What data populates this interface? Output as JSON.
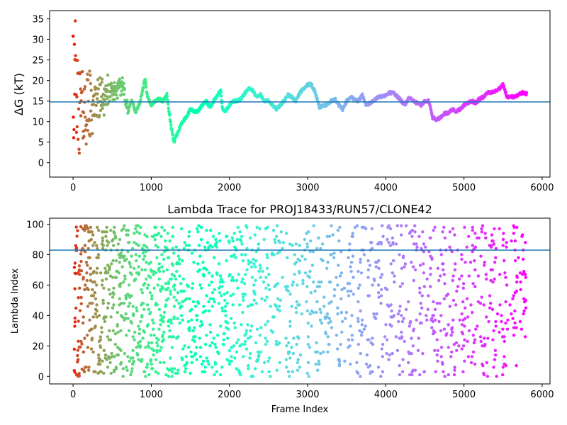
{
  "chart_data": [
    {
      "type": "scatter",
      "title": "",
      "xlabel": "",
      "ylabel": "ΔG (kT)",
      "xlim": [
        -300,
        6100
      ],
      "ylim": [
        -3.5,
        37
      ],
      "xticks": [
        0,
        1000,
        2000,
        3000,
        4000,
        5000,
        6000
      ],
      "yticks": [
        0,
        5,
        10,
        15,
        20,
        25,
        30,
        35
      ],
      "hline": {
        "y": 14.8,
        "color": "#1f77b4"
      },
      "colormap": "rainbow (red at early frames → violet at late frames)",
      "grid": false,
      "legend": "none",
      "trend": [
        [
          0,
          18
        ],
        [
          60,
          14
        ],
        [
          150,
          13
        ],
        [
          250,
          14
        ],
        [
          350,
          16
        ],
        [
          450,
          17
        ],
        [
          550,
          17.5
        ],
        [
          650,
          19
        ],
        [
          700,
          12
        ],
        [
          750,
          15.5
        ],
        [
          800,
          12
        ],
        [
          860,
          15
        ],
        [
          920,
          20.5
        ],
        [
          950,
          16
        ],
        [
          1000,
          14
        ],
        [
          1050,
          15
        ],
        [
          1100,
          15.5
        ],
        [
          1150,
          15
        ],
        [
          1200,
          16.5
        ],
        [
          1230,
          12
        ],
        [
          1260,
          8
        ],
        [
          1290,
          5
        ],
        [
          1310,
          6
        ],
        [
          1350,
          8
        ],
        [
          1400,
          10
        ],
        [
          1450,
          11
        ],
        [
          1500,
          13
        ],
        [
          1550,
          12.5
        ],
        [
          1600,
          12.5
        ],
        [
          1650,
          14
        ],
        [
          1700,
          15
        ],
        [
          1750,
          13.5
        ],
        [
          1800,
          15
        ],
        [
          1850,
          16.5
        ],
        [
          1890,
          17.5
        ],
        [
          1910,
          13
        ],
        [
          1950,
          12.5
        ],
        [
          2000,
          14
        ],
        [
          2050,
          15
        ],
        [
          2100,
          15
        ],
        [
          2150,
          15.5
        ],
        [
          2200,
          17
        ],
        [
          2250,
          18
        ],
        [
          2300,
          17.5
        ],
        [
          2350,
          16
        ],
        [
          2400,
          16.5
        ],
        [
          2450,
          15
        ],
        [
          2500,
          15
        ],
        [
          2550,
          14
        ],
        [
          2600,
          13
        ],
        [
          2650,
          14
        ],
        [
          2700,
          15
        ],
        [
          2750,
          16.5
        ],
        [
          2800,
          16
        ],
        [
          2850,
          15
        ],
        [
          2900,
          17
        ],
        [
          2950,
          18
        ],
        [
          3000,
          19
        ],
        [
          3050,
          19
        ],
        [
          3100,
          17
        ],
        [
          3150,
          13.5
        ],
        [
          3200,
          14
        ],
        [
          3250,
          14
        ],
        [
          3300,
          15
        ],
        [
          3350,
          15.5
        ],
        [
          3400,
          14
        ],
        [
          3450,
          13
        ],
        [
          3500,
          15
        ],
        [
          3550,
          16
        ],
        [
          3600,
          15.5
        ],
        [
          3650,
          15
        ],
        [
          3700,
          16.5
        ],
        [
          3750,
          14
        ],
        [
          3800,
          14.5
        ],
        [
          3850,
          15
        ],
        [
          3900,
          16
        ],
        [
          3950,
          16
        ],
        [
          4000,
          16.5
        ],
        [
          4050,
          17
        ],
        [
          4100,
          17
        ],
        [
          4150,
          16
        ],
        [
          4200,
          15
        ],
        [
          4250,
          14
        ],
        [
          4300,
          16
        ],
        [
          4350,
          15
        ],
        [
          4400,
          14.5
        ],
        [
          4450,
          14
        ],
        [
          4500,
          15
        ],
        [
          4550,
          15
        ],
        [
          4600,
          11
        ],
        [
          4650,
          10.5
        ],
        [
          4700,
          11
        ],
        [
          4750,
          12
        ],
        [
          4800,
          12
        ],
        [
          4850,
          13
        ],
        [
          4900,
          12.5
        ],
        [
          4950,
          13
        ],
        [
          5000,
          14
        ],
        [
          5050,
          14.5
        ],
        [
          5100,
          15
        ],
        [
          5150,
          14.5
        ],
        [
          5200,
          15.5
        ],
        [
          5250,
          16
        ],
        [
          5300,
          17
        ],
        [
          5350,
          17
        ],
        [
          5400,
          17.5
        ],
        [
          5450,
          18
        ],
        [
          5500,
          19
        ],
        [
          5550,
          16
        ],
        [
          5600,
          16
        ],
        [
          5650,
          16
        ],
        [
          5700,
          16.5
        ],
        [
          5750,
          17
        ],
        [
          5800,
          16.8
        ]
      ]
    },
    {
      "type": "scatter",
      "title": "Lambda Trace for PROJ18433/RUN57/CLONE42",
      "xlabel": "Frame Index",
      "ylabel": "Lambda Index",
      "xlim": [
        -300,
        6100
      ],
      "ylim": [
        -5,
        104
      ],
      "xticks": [
        0,
        1000,
        2000,
        3000,
        4000,
        5000,
        6000
      ],
      "yticks": [
        0,
        20,
        40,
        60,
        80,
        100
      ],
      "hline": {
        "y": 83,
        "color": "#1f77b4"
      },
      "colormap": "rainbow (red at early frames → violet at late frames)",
      "grid": false,
      "legend": "none",
      "value_range": [
        0,
        99
      ]
    }
  ]
}
